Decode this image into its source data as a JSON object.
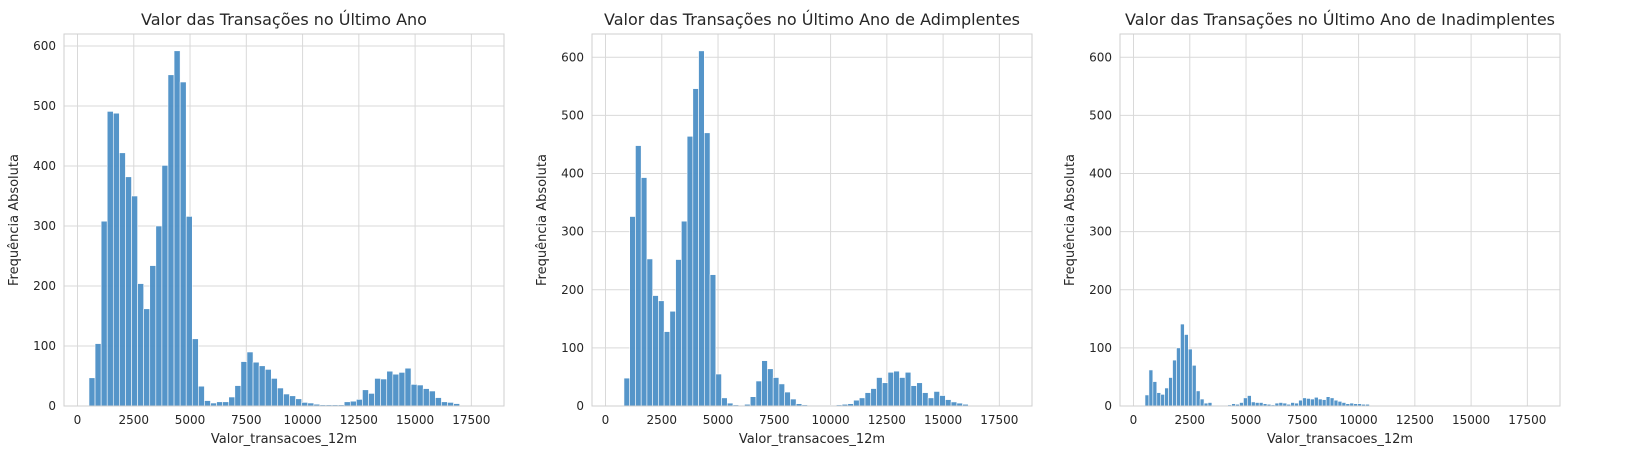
{
  "chart_data": [
    {
      "type": "bar",
      "title": "Valor das Transações no Último Ano",
      "xlabel": "Valor_transacoes_12m",
      "ylabel": "Frequência Absoluta",
      "xlim": [
        -600,
        18950
      ],
      "ylim": [
        0,
        620
      ],
      "xticks": [
        0,
        2500,
        5000,
        7500,
        10000,
        12500,
        15000,
        17500
      ],
      "xtick_labels": [
        "0",
        "2500",
        "5000",
        "7500",
        "10000",
        "12500",
        "15000",
        "17500"
      ],
      "yticks": [
        0,
        100,
        200,
        300,
        400,
        500,
        600
      ],
      "ytick_labels": [
        "0",
        "100",
        "200",
        "300",
        "400",
        "500",
        "600"
      ],
      "grid": true,
      "bin_start": 510,
      "bin_width": 270,
      "values": [
        47,
        104,
        308,
        491,
        488,
        422,
        382,
        350,
        204,
        162,
        234,
        300,
        401,
        552,
        592,
        540,
        316,
        112,
        33,
        9,
        5,
        7,
        7,
        15,
        34,
        74,
        90,
        73,
        67,
        61,
        46,
        30,
        20,
        17,
        12,
        6,
        5,
        3,
        2,
        2,
        2,
        2,
        7,
        8,
        11,
        27,
        21,
        46,
        45,
        58,
        53,
        56,
        63,
        36,
        35,
        29,
        25,
        14,
        7,
        6,
        4
      ],
      "color": "#4c8fc6"
    },
    {
      "type": "bar",
      "title": "Valor das Transações no Último Ano de Adimplentes",
      "xlabel": "Valor_transacoes_12m",
      "ylabel": "Frequência Absoluta",
      "xlim": [
        -600,
        18950
      ],
      "ylim": [
        0,
        640
      ],
      "xticks": [
        0,
        2500,
        5000,
        7500,
        10000,
        12500,
        15000,
        17500
      ],
      "xtick_labels": [
        "0",
        "2500",
        "5000",
        "7500",
        "10000",
        "12500",
        "15000",
        "17500"
      ],
      "yticks": [
        0,
        100,
        200,
        300,
        400,
        500,
        600
      ],
      "ytick_labels": [
        "0",
        "100",
        "200",
        "300",
        "400",
        "500",
        "600"
      ],
      "grid": true,
      "bin_start": 820,
      "bin_width": 255,
      "values": [
        48,
        326,
        448,
        393,
        253,
        190,
        181,
        128,
        163,
        252,
        318,
        464,
        546,
        611,
        470,
        226,
        55,
        14,
        5,
        2,
        1,
        3,
        16,
        43,
        78,
        64,
        49,
        38,
        24,
        12,
        4,
        2,
        1,
        1,
        1,
        1,
        1,
        2,
        3,
        4,
        10,
        14,
        23,
        30,
        49,
        40,
        58,
        60,
        49,
        58,
        35,
        40,
        23,
        14,
        25,
        18,
        11,
        7,
        5,
        3
      ],
      "color": "#4c8fc6"
    },
    {
      "type": "bar",
      "title": "Valor das Transações no Último Ano de Inadimplentes",
      "xlabel": "Valor_transacoes_12m",
      "ylabel": "Frequência Absoluta",
      "xlim": [
        -600,
        18950
      ],
      "ylim": [
        0,
        640
      ],
      "xticks": [
        0,
        2500,
        5000,
        7500,
        10000,
        12500,
        15000,
        17500
      ],
      "xtick_labels": [
        "0",
        "2500",
        "5000",
        "7500",
        "10000",
        "12500",
        "15000",
        "17500"
      ],
      "yticks": [
        0,
        100,
        200,
        300,
        400,
        500,
        600
      ],
      "ytick_labels": [
        "0",
        "100",
        "200",
        "300",
        "400",
        "500",
        "600"
      ],
      "grid": true,
      "bin_start": 510,
      "bin_width": 175,
      "values": [
        19,
        62,
        42,
        23,
        20,
        31,
        49,
        79,
        100,
        141,
        123,
        98,
        70,
        26,
        12,
        5,
        6,
        1,
        1,
        1,
        1,
        2,
        4,
        3,
        6,
        14,
        18,
        7,
        6,
        6,
        4,
        3,
        2,
        5,
        6,
        5,
        3,
        6,
        5,
        10,
        14,
        13,
        12,
        15,
        12,
        11,
        16,
        14,
        10,
        8,
        6,
        4,
        5,
        4,
        4,
        3,
        3
      ],
      "color": "#4c8fc6"
    }
  ]
}
